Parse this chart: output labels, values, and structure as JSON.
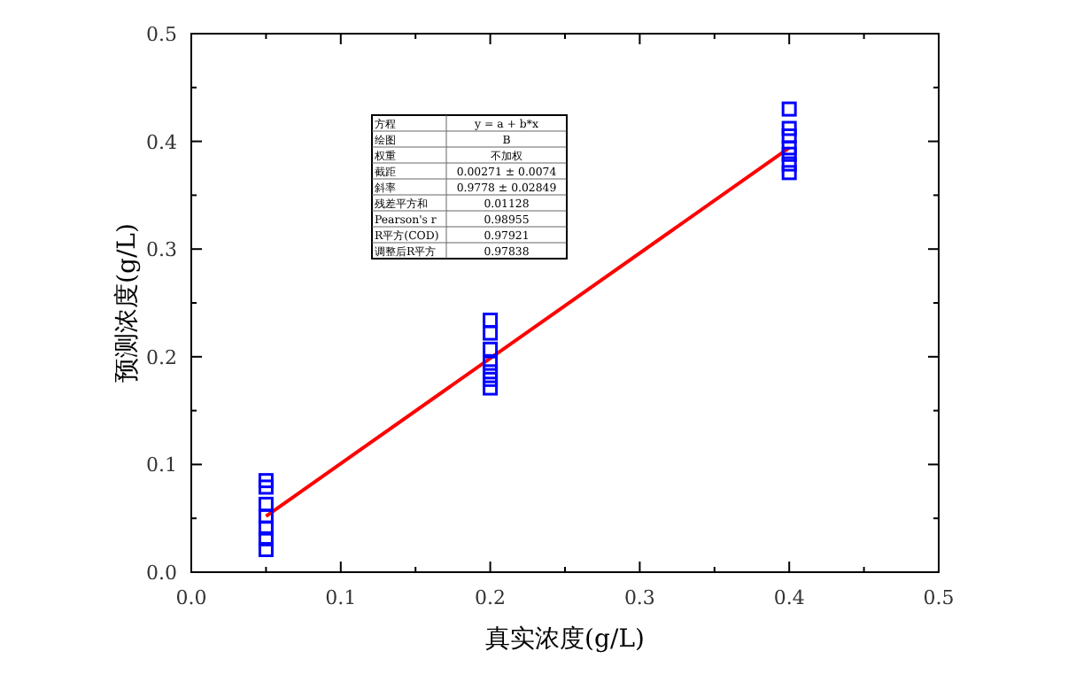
{
  "chart_data": {
    "type": "scatter",
    "xlabel": "真实浓度(g/L)",
    "ylabel": "预测浓度(g/L)",
    "xlim": [
      0,
      0.5
    ],
    "ylim": [
      0,
      0.5
    ],
    "xticks": [
      {
        "value": 0,
        "label": "0.0"
      },
      {
        "value": 0.05,
        "label": null
      },
      0.1,
      {
        "value": 0.15,
        "label": null
      },
      0.2,
      {
        "value": 0.25,
        "label": null
      },
      0.3,
      {
        "value": 0.35,
        "label": null
      },
      0.4,
      {
        "value": 0.45,
        "label": null
      },
      0.5
    ],
    "yticks": [
      {
        "value": 0,
        "label": "0.0"
      },
      {
        "value": 0.05,
        "label": null
      },
      0.1,
      {
        "value": 0.15,
        "label": null
      },
      0.2,
      {
        "value": 0.25,
        "label": null
      },
      0.3,
      {
        "value": 0.35,
        "label": null
      },
      0.4,
      {
        "value": 0.45,
        "label": null
      },
      0.5
    ],
    "series": [
      {
        "marker": "square",
        "color": "#0000ff",
        "x": [
          0.05,
          0.05,
          0.05,
          0.05,
          0.05,
          0.05,
          0.05,
          0.2,
          0.2,
          0.2,
          0.2,
          0.2,
          0.2,
          0.2,
          0.4,
          0.4,
          0.4,
          0.4,
          0.4,
          0.4,
          0.4
        ],
        "values": [
          0.085,
          0.079,
          0.063,
          0.052,
          0.041,
          0.031,
          0.021,
          0.234,
          0.222,
          0.207,
          0.194,
          0.186,
          0.179,
          0.171,
          0.43,
          0.412,
          0.405,
          0.394,
          0.388,
          0.379,
          0.371
        ]
      },
      {
        "type": "line",
        "marker": "none",
        "color": "#ff0000",
        "x": [
          0.05,
          0.4
        ],
        "values": [
          0.052,
          0.394
        ]
      }
    ],
    "annotations": [
      "方程",
      "y = a + b*x",
      "绘图",
      "B",
      "权重",
      "不加权",
      "截距",
      "0.00271 ± 0.0074",
      "斜率",
      "0.9778 ± 0.02849",
      "残差平方和",
      "0.01128",
      "Pearson's r",
      "0.98955",
      "R平方(COD)",
      "0.97921",
      "调整后R平方",
      "0.97838"
    ]
  }
}
